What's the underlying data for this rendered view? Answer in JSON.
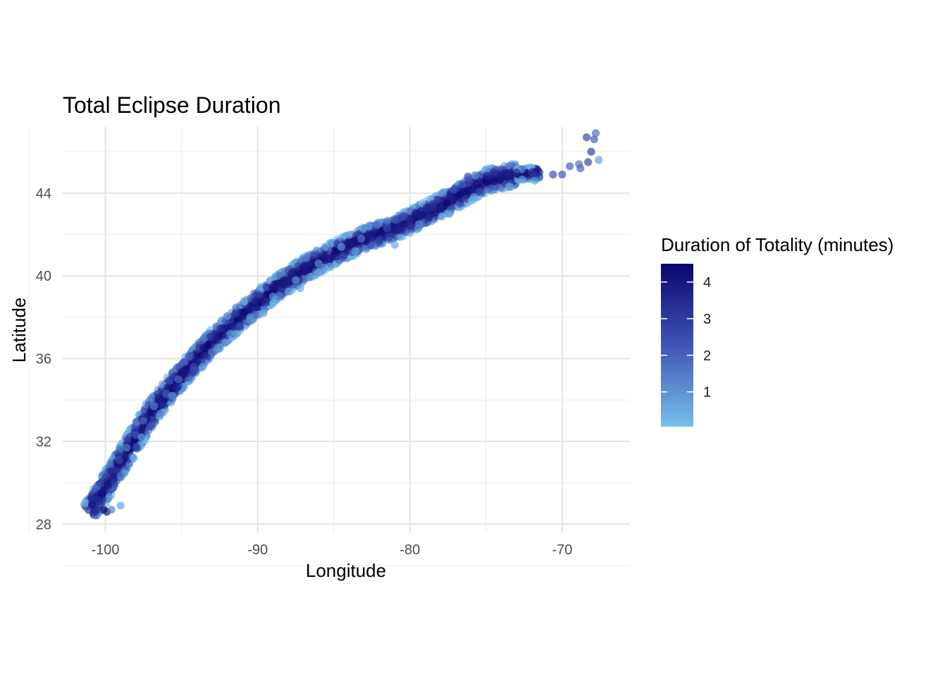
{
  "chart_data": {
    "type": "scatter",
    "title": "Total Eclipse Duration",
    "xlabel": "Longitude",
    "ylabel": "Latitude",
    "xlim": [
      -102.8,
      -65.6
    ],
    "ylim": [
      27.6,
      47.2
    ],
    "x_ticks": [
      -100,
      -90,
      -80,
      -70
    ],
    "x_tick_labels": [
      "-100",
      "-90",
      "-80",
      "-70"
    ],
    "y_ticks": [
      28,
      32,
      36,
      40,
      44
    ],
    "y_tick_labels": [
      "28",
      "32",
      "36",
      "40",
      "44"
    ],
    "grid": true,
    "legend": {
      "title": "Duration of Totality (minutes)",
      "position": "right",
      "min": 0.05,
      "max": 4.5,
      "ticks": [
        1,
        2,
        3,
        4
      ],
      "tick_labels": [
        "1",
        "2",
        "3",
        "4"
      ],
      "color_low": "#74c0ea",
      "color_mid": "#3f55b5",
      "color_high": "#0b0570"
    },
    "point_alpha": 0.65,
    "path_centerline": [
      [
        -101.0,
        28.6
      ],
      [
        -99.0,
        31.0
      ],
      [
        -97.0,
        33.4
      ],
      [
        -95.0,
        35.2
      ],
      [
        -93.0,
        36.8
      ],
      [
        -91.0,
        38.1
      ],
      [
        -89.0,
        39.3
      ],
      [
        -87.0,
        40.3
      ],
      [
        -85.0,
        41.1
      ],
      [
        -83.0,
        41.8
      ],
      [
        -81.0,
        42.3
      ],
      [
        -79.0,
        43.0
      ],
      [
        -77.0,
        43.8
      ],
      [
        -75.0,
        44.6
      ],
      [
        -73.0,
        44.9
      ],
      [
        -71.5,
        45.0
      ]
    ],
    "series": [
      {
        "name": "",
        "points": [
          [
            -100.9,
            29.3,
            3.6
          ],
          [
            -100.5,
            29.2,
            3.3
          ],
          [
            -100.1,
            28.7,
            4.2
          ],
          [
            -99.9,
            28.6,
            4.3
          ],
          [
            -99.6,
            28.7,
            1.5
          ],
          [
            -99.8,
            29.9,
            3.9
          ],
          [
            -99.4,
            30.6,
            3.1
          ],
          [
            -99.1,
            31.1,
            2.5
          ],
          [
            -98.6,
            31.7,
            1.3
          ],
          [
            -98.0,
            32.3,
            2.2
          ],
          [
            -97.5,
            33.0,
            1.8
          ],
          [
            -96.8,
            33.7,
            1.2
          ],
          [
            -96.0,
            34.3,
            2.0
          ],
          [
            -95.2,
            35.0,
            1.6
          ],
          [
            -94.2,
            35.6,
            2.6
          ],
          [
            -93.0,
            36.3,
            1.4
          ],
          [
            -91.8,
            37.2,
            1.0
          ],
          [
            -90.5,
            38.0,
            1.1
          ],
          [
            -89.0,
            39.0,
            1.0
          ],
          [
            -87.5,
            39.8,
            0.9
          ],
          [
            -86.0,
            40.6,
            1.0
          ],
          [
            -84.5,
            41.4,
            0.8
          ],
          [
            -83.2,
            41.8,
            1.5
          ],
          [
            -81.5,
            42.3,
            2.8
          ],
          [
            -80.0,
            42.7,
            3.6
          ],
          [
            -78.5,
            43.3,
            3.3
          ],
          [
            -77.0,
            44.2,
            3.0
          ],
          [
            -76.2,
            44.8,
            2.6
          ],
          [
            -74.5,
            45.0,
            3.2
          ],
          [
            -73.0,
            45.0,
            3.4
          ],
          [
            -72.0,
            45.0,
            3.2
          ],
          [
            -71.5,
            45.0,
            3.6
          ],
          [
            -70.6,
            44.9,
            2.8
          ],
          [
            -70.0,
            44.9,
            2.6
          ],
          [
            -69.5,
            45.3,
            2.4
          ],
          [
            -68.8,
            45.2,
            2.2
          ],
          [
            -68.3,
            45.5,
            3.0
          ],
          [
            -68.1,
            46.0,
            3.3
          ],
          [
            -67.9,
            46.6,
            2.4
          ],
          [
            -67.8,
            46.9,
            2.0
          ],
          [
            -67.6,
            45.6,
            0.9
          ],
          [
            -68.4,
            46.7,
            3.0
          ],
          [
            -68.9,
            45.4,
            1.9
          ],
          [
            -71.8,
            44.6,
            0.7
          ],
          [
            -75.8,
            43.8,
            0.6
          ],
          [
            -81.0,
            41.5,
            0.7
          ],
          [
            -99.0,
            28.9,
            0.8
          ],
          [
            -99.5,
            30.2,
            3.5
          ],
          [
            -97.6,
            32.2,
            0.7
          ],
          [
            -95.6,
            34.2,
            0.9
          ],
          [
            -93.6,
            35.6,
            0.8
          ],
          [
            -91.4,
            37.2,
            0.6
          ],
          [
            -89.6,
            38.2,
            0.7
          ],
          [
            -87.2,
            39.4,
            0.6
          ],
          [
            -85.6,
            40.4,
            0.7
          ],
          [
            -83.6,
            41.2,
            0.8
          ],
          [
            -79.4,
            42.5,
            0.9
          ],
          [
            -77.4,
            43.0,
            0.8
          ],
          [
            -73.4,
            44.3,
            0.9
          ]
        ]
      }
    ]
  }
}
